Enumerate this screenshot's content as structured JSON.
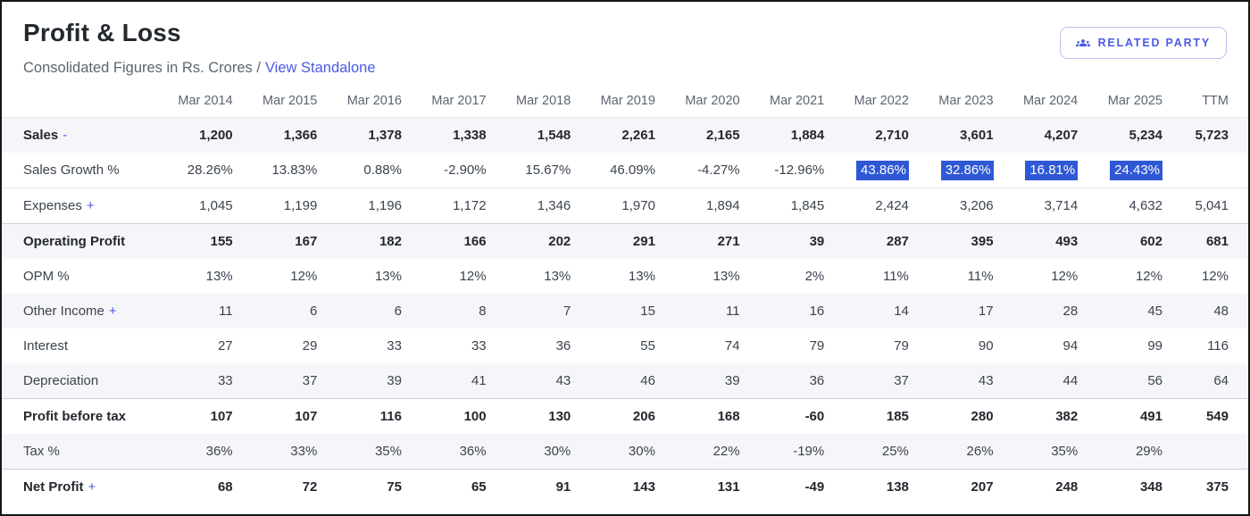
{
  "card": {
    "title": "Profit & Loss",
    "subtitle_prefix": "Consolidated Figures in Rs. Crores /",
    "standalone_link": "View Standalone",
    "related_party_label": "RELATED PARTY"
  },
  "table": {
    "columns": [
      "Mar 2014",
      "Mar 2015",
      "Mar 2016",
      "Mar 2017",
      "Mar 2018",
      "Mar 2019",
      "Mar 2020",
      "Mar 2021",
      "Mar 2022",
      "Mar 2023",
      "Mar 2024",
      "Mar 2025",
      "TTM"
    ],
    "rows": [
      {
        "label": "Sales",
        "suffix": "-",
        "bold": true,
        "striped": true,
        "values": [
          "1,200",
          "1,366",
          "1,378",
          "1,338",
          "1,548",
          "2,261",
          "2,165",
          "1,884",
          "2,710",
          "3,601",
          "4,207",
          "5,234",
          "5,723"
        ]
      },
      {
        "label": "Sales Growth %",
        "suffix": "",
        "bold": false,
        "striped": false,
        "inserted": true,
        "highlighted_columns": [
          8,
          9,
          10,
          11
        ],
        "values": [
          "28.26%",
          "13.83%",
          "0.88%",
          "-2.90%",
          "15.67%",
          "46.09%",
          "-4.27%",
          "-12.96%",
          "43.86%",
          "32.86%",
          "16.81%",
          "24.43%",
          ""
        ]
      },
      {
        "label": "Expenses",
        "suffix": "+",
        "bold": false,
        "striped": false,
        "values": [
          "1,045",
          "1,199",
          "1,196",
          "1,172",
          "1,346",
          "1,970",
          "1,894",
          "1,845",
          "2,424",
          "3,206",
          "3,714",
          "4,632",
          "5,041"
        ]
      },
      {
        "label": "Operating Profit",
        "suffix": "",
        "bold": true,
        "striped": true,
        "values": [
          "155",
          "167",
          "182",
          "166",
          "202",
          "291",
          "271",
          "39",
          "287",
          "395",
          "493",
          "602",
          "681"
        ]
      },
      {
        "label": "OPM %",
        "suffix": "",
        "bold": false,
        "striped": false,
        "values": [
          "13%",
          "12%",
          "13%",
          "12%",
          "13%",
          "13%",
          "13%",
          "2%",
          "11%",
          "11%",
          "12%",
          "12%",
          "12%"
        ]
      },
      {
        "label": "Other Income",
        "suffix": "+",
        "bold": false,
        "striped": true,
        "values": [
          "11",
          "6",
          "6",
          "8",
          "7",
          "15",
          "11",
          "16",
          "14",
          "17",
          "28",
          "45",
          "48"
        ]
      },
      {
        "label": "Interest",
        "suffix": "",
        "bold": false,
        "striped": false,
        "values": [
          "27",
          "29",
          "33",
          "33",
          "36",
          "55",
          "74",
          "79",
          "79",
          "90",
          "94",
          "99",
          "116"
        ]
      },
      {
        "label": "Depreciation",
        "suffix": "",
        "bold": false,
        "striped": true,
        "values": [
          "33",
          "37",
          "39",
          "41",
          "43",
          "46",
          "39",
          "36",
          "37",
          "43",
          "44",
          "56",
          "64"
        ]
      },
      {
        "label": "Profit before tax",
        "suffix": "",
        "bold": true,
        "striped": false,
        "values": [
          "107",
          "107",
          "116",
          "100",
          "130",
          "206",
          "168",
          "-60",
          "185",
          "280",
          "382",
          "491",
          "549"
        ]
      },
      {
        "label": "Tax %",
        "suffix": "",
        "bold": false,
        "striped": true,
        "values": [
          "36%",
          "33%",
          "35%",
          "36%",
          "30%",
          "30%",
          "22%",
          "-19%",
          "25%",
          "26%",
          "35%",
          "29%",
          ""
        ]
      },
      {
        "label": "Net Profit",
        "suffix": "+",
        "bold": true,
        "striped": false,
        "values": [
          "68",
          "72",
          "75",
          "65",
          "91",
          "143",
          "131",
          "-49",
          "138",
          "207",
          "248",
          "348",
          "375"
        ]
      }
    ]
  },
  "colors": {
    "accent": "#4b5ae4",
    "selection_bg": "#2f58d5",
    "stripe": "#f6f6fa",
    "card_border": "#15171c"
  }
}
